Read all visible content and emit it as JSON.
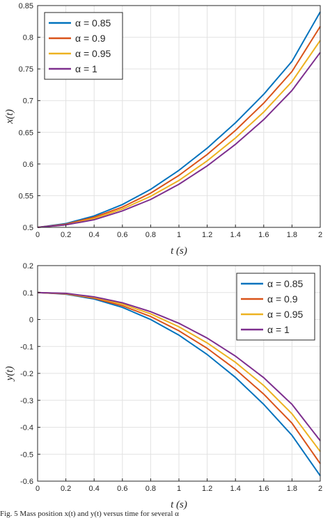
{
  "chart_data": [
    {
      "type": "line",
      "xlabel": "t (s)",
      "ylabel": "x(t)",
      "xlim": [
        0,
        2
      ],
      "ylim": [
        0.5,
        0.85
      ],
      "xticks": [
        "0",
        "0.2",
        "0.4",
        "0.6",
        "0.8",
        "1",
        "1.2",
        "1.4",
        "1.6",
        "1.8",
        "2"
      ],
      "yticks": [
        "0.5",
        "0.55",
        "0.6",
        "0.65",
        "0.7",
        "0.75",
        "0.8",
        "0.85"
      ],
      "grid": true,
      "legend_position": "top-left",
      "x": [
        0,
        0.2,
        0.4,
        0.6,
        0.8,
        1.0,
        1.2,
        1.4,
        1.6,
        1.8,
        2.0
      ],
      "series": [
        {
          "name": "α = 0.85",
          "color": "#0072BD",
          "values": [
            0.5,
            0.506,
            0.518,
            0.536,
            0.56,
            0.59,
            0.625,
            0.665,
            0.71,
            0.762,
            0.84
          ]
        },
        {
          "name": "α = 0.9",
          "color": "#D95319",
          "values": [
            0.5,
            0.505,
            0.516,
            0.532,
            0.554,
            0.582,
            0.615,
            0.653,
            0.696,
            0.746,
            0.817
          ]
        },
        {
          "name": "α = 0.95",
          "color": "#EDB120",
          "values": [
            0.5,
            0.504,
            0.514,
            0.529,
            0.549,
            0.574,
            0.605,
            0.641,
            0.682,
            0.73,
            0.795
          ]
        },
        {
          "name": "α = 1",
          "color": "#7E2F8E",
          "values": [
            0.5,
            0.504,
            0.512,
            0.526,
            0.544,
            0.568,
            0.597,
            0.631,
            0.67,
            0.716,
            0.776
          ]
        }
      ]
    },
    {
      "type": "line",
      "xlabel": "t (s)",
      "ylabel": "y(t)",
      "xlim": [
        0,
        2
      ],
      "ylim": [
        -0.6,
        0.2
      ],
      "xticks": [
        "0",
        "0.2",
        "0.4",
        "0.6",
        "0.8",
        "1",
        "1.2",
        "1.4",
        "1.6",
        "1.8",
        "2"
      ],
      "yticks": [
        "-0.6",
        "-0.5",
        "-0.4",
        "-0.3",
        "-0.2",
        "-0.1",
        "0",
        "0.1",
        "0.2"
      ],
      "grid": true,
      "legend_position": "top-right",
      "x": [
        0,
        0.2,
        0.4,
        0.6,
        0.8,
        1.0,
        1.2,
        1.4,
        1.6,
        1.8,
        2.0
      ],
      "series": [
        {
          "name": "α = 0.85",
          "color": "#0072BD",
          "values": [
            0.1,
            0.094,
            0.076,
            0.045,
            0.0,
            -0.058,
            -0.13,
            -0.215,
            -0.315,
            -0.43,
            -0.58
          ]
        },
        {
          "name": "α = 0.9",
          "color": "#D95319",
          "values": [
            0.1,
            0.095,
            0.079,
            0.051,
            0.011,
            -0.042,
            -0.107,
            -0.185,
            -0.277,
            -0.385,
            -0.535
          ]
        },
        {
          "name": "α = 0.95",
          "color": "#EDB120",
          "values": [
            0.1,
            0.096,
            0.082,
            0.057,
            0.021,
            -0.027,
            -0.087,
            -0.159,
            -0.245,
            -0.35,
            -0.49
          ]
        },
        {
          "name": "α = 1",
          "color": "#7E2F8E",
          "values": [
            0.1,
            0.097,
            0.084,
            0.062,
            0.029,
            -0.014,
            -0.069,
            -0.136,
            -0.216,
            -0.315,
            -0.45
          ]
        }
      ]
    }
  ],
  "caption": "Fig. 5 Mass position x(t) and y(t) versus time for several α"
}
